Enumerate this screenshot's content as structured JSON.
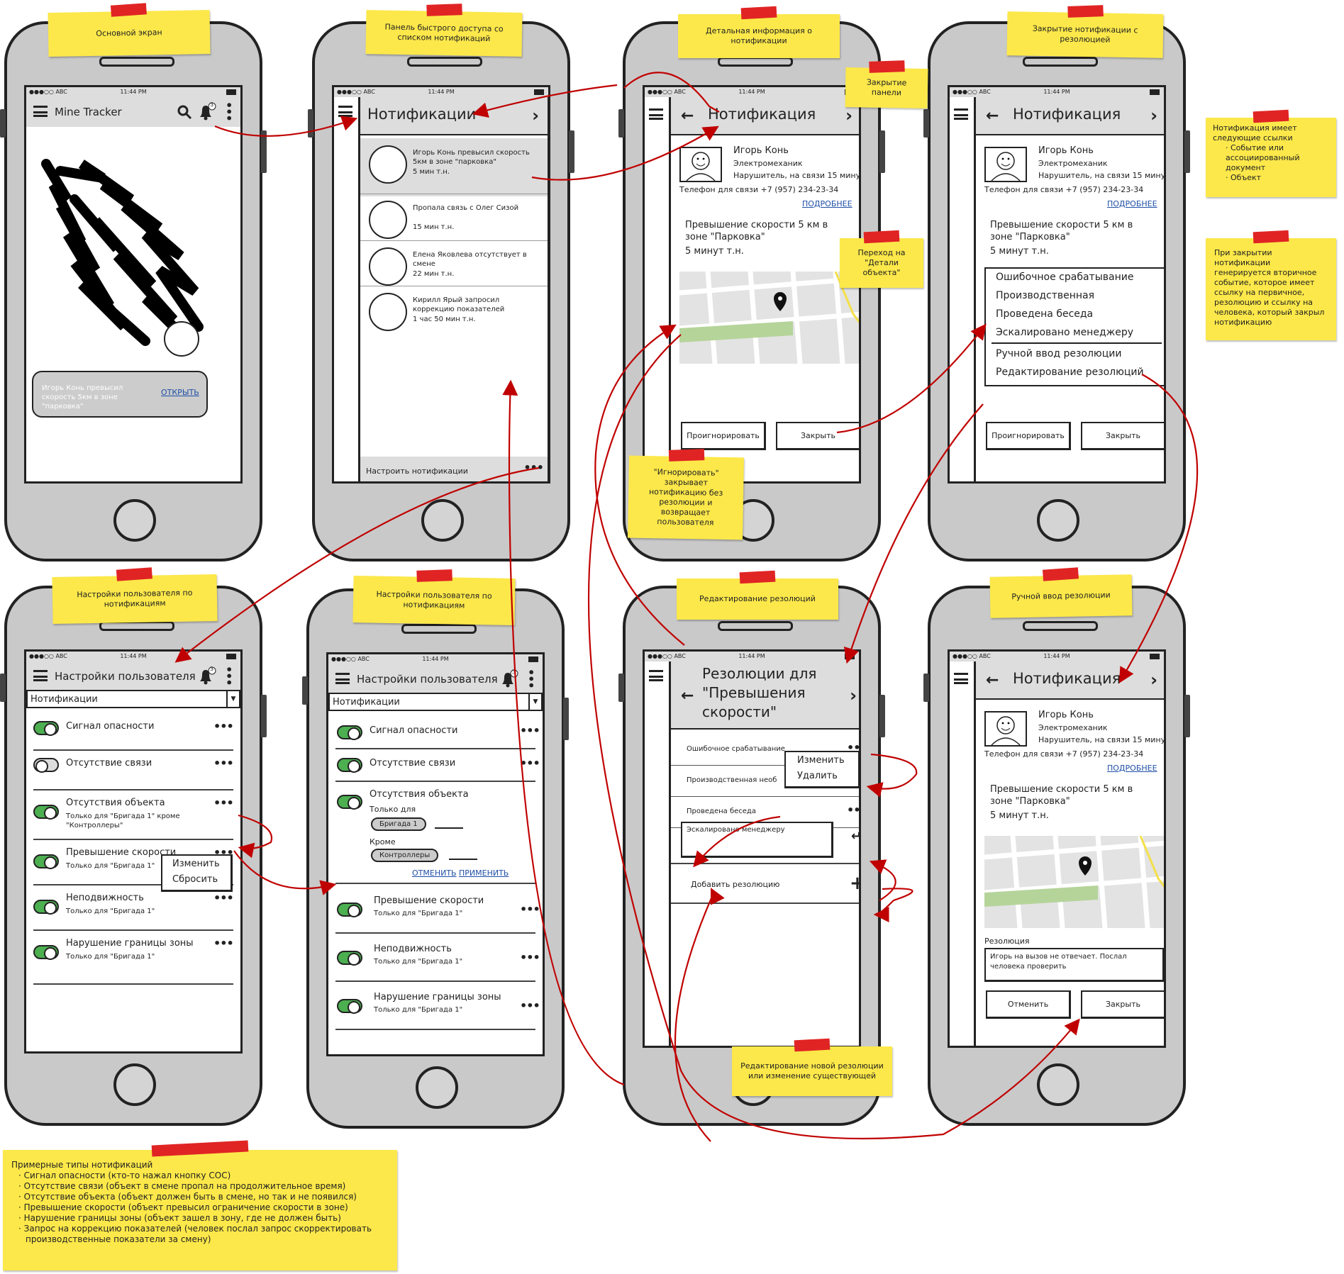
{
  "notes": {
    "n1": "Основной экран",
    "n2": "Панель быстрого доступа со списком нотификаций",
    "n3": "Детальная информация о нотификации",
    "n4": "Закрытие нотификации с резолюцией",
    "n5": "Закрытие панели",
    "n6": "Переход на \"Детали объекта\"",
    "n7": "\"Игнорировать\" закрывает нотификацию без резолюции и возвращает пользователя",
    "n8": "Настройки пользователя по нотификациям",
    "n9": "Настройки пользователя по нотификациям",
    "n10": "Редактирование резолюций",
    "n11": "Ручной ввод резолюции",
    "n12": "Редактирование новой резолюции или изменение существующей",
    "n13_title": "Нотификация имеет следующие ссылки",
    "n13_items": [
      "Событие или ассоциированный документ",
      "Объект"
    ],
    "n14": "При закрытии нотификации генерируется вторичное событие, которое имеет ссылку на первичное, резолюцию и ссылку на человека, который закрыл нотификацию",
    "n15_title": "Примерные типы нотификаций",
    "n15_items": [
      "Сигнал опасности (кто-то нажал кнопку СОС)",
      "Отсутствие связи (объект в смене пропал на продолжительное время)",
      "Отсутствие объекта (объект должен быть в смене, но так и не появился)",
      "Превышение скорости (объект превысил ограничение скорости в зоне)",
      "Нарушение границы зоны (объект зашел в зону, где не должен быть)",
      "Запрос на коррекцию показателей (человек послал запрос скорректировать производственные показатели за смену)"
    ]
  },
  "status": {
    "carrier": "●●●○○ ABC",
    "time": "11:44 PM"
  },
  "colors": {
    "sticky": "#fce84a",
    "tape": "#e02424",
    "arrow": "#c00000",
    "link": "#1f4fa6",
    "toggle_on": "#4caf50"
  },
  "screen1": {
    "app_title": "Mine Tracker",
    "badge": "3",
    "toast_text": "Игорь Конь превысил скорость 5км в зоне \"парковка\"",
    "toast_link": "ОТКРЫТЬ"
  },
  "screen2": {
    "title": "Нотификации",
    "items": [
      {
        "text": "Игорь Конь превысил скорость 5км в зоне \"парковка\"",
        "time": "5 мин т.н."
      },
      {
        "text": "Пропала связь с Олег Сизой",
        "time": "15 мин т.н."
      },
      {
        "text": "Елена Яковлева отсутствует в смене",
        "time": "22 мин т.н."
      },
      {
        "text": "Кирилл Ярый запросил коррекцию показателей",
        "time": "1 час 50 мин т.н."
      }
    ],
    "footer": "Настроить нотификации"
  },
  "detail": {
    "title": "Нотификация",
    "name": "Игорь Конь",
    "role": "Электромеханик",
    "status": "Нарушитель, на связи 15 минут",
    "phone": "Телефон для связи +7 (957) 234-23-34",
    "more": "ПОДРОБНЕЕ",
    "event": "Превышение скорости 5 км в зоне \"Парковка\"",
    "event_time": "5 минут т.н.",
    "ignore": "Проигнорировать",
    "close": "Закрыть"
  },
  "screen4": {
    "options": [
      "Ошибочное срабатывание",
      "Производственная",
      "Проведена беседа",
      "Эскалировано менеджеру"
    ],
    "options2": [
      "Ручной ввод резолюции",
      "Редактирование резолюций"
    ]
  },
  "settings": {
    "title": "Настройки пользователя",
    "dropdown": "Нотификации",
    "rows": [
      {
        "label": "Сигнал опасности",
        "sub": ""
      },
      {
        "label": "Отсутствие связи",
        "sub": ""
      },
      {
        "label": "Отсутствия объекта",
        "sub": "Только для \"Бригада 1\" кроме \"Контроллеры\""
      },
      {
        "label": "Превышение скорости",
        "sub": "Только для \"Бригада 1\""
      },
      {
        "label": "Неподвижность",
        "sub": "Только для \"Бригада 1\""
      },
      {
        "label": "Нарушение границы зоны",
        "sub": "Только для \"Бригада 1\""
      }
    ],
    "menu": [
      "Изменить",
      "Сбросить"
    ],
    "only_for": "Только для",
    "chip1": "Бригада 1",
    "except": "Кроме",
    "chip2": "Контроллеры",
    "cancel": "ОТМЕНИТЬ",
    "apply": "ПРИМЕНИТЬ"
  },
  "resolutions": {
    "title": "Резолюции для \"Превышения скорости\"",
    "items": [
      "Ошибочное срабатывание",
      "Производственная необ",
      "Проведена беседа"
    ],
    "menu": [
      "Изменить",
      "Удалить"
    ],
    "edit_value": "Эскалировано менеджеру",
    "add": "Добавить резолюцию"
  },
  "manual": {
    "label": "Резолюция",
    "text": "Игорь на вызов не отвечает. Послал человека проверить",
    "cancel": "Отменить",
    "close": "Закрыть"
  }
}
